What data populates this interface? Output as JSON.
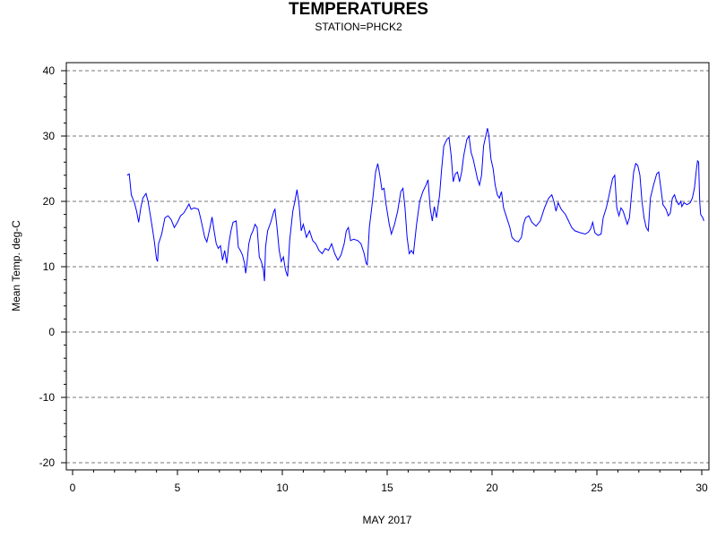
{
  "chart_data": {
    "type": "line",
    "title": "TEMPERATURES",
    "subtitle": "STATION=PHCK2",
    "xlabel": "MAY 2017",
    "ylabel": "Mean Temp. deg-C",
    "xlim": [
      0,
      30
    ],
    "ylim": [
      -21,
      41
    ],
    "x_ticks": [
      0,
      5,
      10,
      15,
      20,
      25,
      30
    ],
    "y_ticks": [
      -20,
      -10,
      0,
      10,
      20,
      30,
      40
    ],
    "grid": "horizontal-dashed",
    "line_color": "#0000ff",
    "series": [
      {
        "points": [
          [
            2.6,
            24.0
          ],
          [
            2.7,
            24.2
          ],
          [
            2.8,
            21.0
          ],
          [
            2.95,
            19.8
          ],
          [
            3.05,
            18.5
          ],
          [
            3.15,
            16.8
          ],
          [
            3.25,
            19.0
          ],
          [
            3.35,
            20.5
          ],
          [
            3.5,
            21.2
          ],
          [
            3.6,
            20.0
          ],
          [
            3.7,
            18.0
          ],
          [
            3.8,
            16.0
          ],
          [
            3.9,
            13.8
          ],
          [
            4.0,
            11.2
          ],
          [
            4.05,
            10.8
          ],
          [
            4.1,
            13.5
          ],
          [
            4.25,
            15.0
          ],
          [
            4.4,
            17.5
          ],
          [
            4.55,
            17.8
          ],
          [
            4.7,
            17.2
          ],
          [
            4.85,
            16.0
          ],
          [
            5.0,
            16.8
          ],
          [
            5.15,
            17.8
          ],
          [
            5.3,
            18.2
          ],
          [
            5.45,
            19.0
          ],
          [
            5.55,
            19.6
          ],
          [
            5.65,
            18.8
          ],
          [
            5.8,
            19.0
          ],
          [
            6.0,
            18.8
          ],
          [
            6.1,
            17.5
          ],
          [
            6.2,
            16.0
          ],
          [
            6.3,
            14.5
          ],
          [
            6.4,
            13.8
          ],
          [
            6.55,
            16.0
          ],
          [
            6.65,
            17.6
          ],
          [
            6.75,
            15.5
          ],
          [
            6.85,
            13.5
          ],
          [
            6.95,
            12.8
          ],
          [
            7.05,
            13.2
          ],
          [
            7.15,
            11.0
          ],
          [
            7.25,
            12.5
          ],
          [
            7.35,
            10.5
          ],
          [
            7.45,
            13.5
          ],
          [
            7.55,
            15.5
          ],
          [
            7.65,
            16.8
          ],
          [
            7.8,
            17.0
          ],
          [
            7.9,
            13.0
          ],
          [
            8.0,
            12.5
          ],
          [
            8.1,
            11.8
          ],
          [
            8.2,
            10.5
          ],
          [
            8.25,
            9.0
          ],
          [
            8.3,
            10.0
          ],
          [
            8.4,
            13.5
          ],
          [
            8.5,
            14.8
          ],
          [
            8.6,
            15.5
          ],
          [
            8.7,
            16.5
          ],
          [
            8.8,
            16.0
          ],
          [
            8.9,
            11.5
          ],
          [
            9.0,
            10.8
          ],
          [
            9.1,
            9.5
          ],
          [
            9.15,
            7.8
          ],
          [
            9.2,
            13.0
          ],
          [
            9.3,
            15.5
          ],
          [
            9.45,
            16.8
          ],
          [
            9.6,
            18.5
          ],
          [
            9.65,
            18.8
          ],
          [
            9.75,
            16.0
          ],
          [
            9.85,
            12.5
          ],
          [
            9.95,
            10.8
          ],
          [
            10.05,
            11.5
          ],
          [
            10.15,
            9.5
          ],
          [
            10.25,
            8.5
          ],
          [
            10.35,
            14.0
          ],
          [
            10.5,
            18.5
          ],
          [
            10.6,
            20.0
          ],
          [
            10.7,
            21.8
          ],
          [
            10.8,
            19.5
          ],
          [
            10.9,
            15.5
          ],
          [
            11.0,
            16.5
          ],
          [
            11.15,
            14.5
          ],
          [
            11.3,
            15.5
          ],
          [
            11.45,
            14.0
          ],
          [
            11.6,
            13.5
          ],
          [
            11.75,
            12.5
          ],
          [
            11.9,
            12.0
          ],
          [
            12.05,
            12.8
          ],
          [
            12.2,
            12.5
          ],
          [
            12.35,
            13.5
          ],
          [
            12.5,
            12.0
          ],
          [
            12.65,
            11.0
          ],
          [
            12.8,
            11.8
          ],
          [
            12.95,
            13.5
          ],
          [
            13.05,
            15.5
          ],
          [
            13.15,
            16.0
          ],
          [
            13.25,
            14.0
          ],
          [
            13.4,
            14.2
          ],
          [
            13.6,
            14.0
          ],
          [
            13.75,
            13.5
          ],
          [
            13.9,
            12.0
          ],
          [
            14.0,
            10.5
          ],
          [
            14.05,
            10.3
          ],
          [
            14.15,
            16.0
          ],
          [
            14.3,
            20.0
          ],
          [
            14.45,
            24.5
          ],
          [
            14.55,
            25.8
          ],
          [
            14.65,
            24.0
          ],
          [
            14.75,
            21.8
          ],
          [
            14.85,
            22.0
          ],
          [
            14.95,
            19.5
          ],
          [
            15.1,
            16.5
          ],
          [
            15.2,
            15.0
          ],
          [
            15.35,
            16.5
          ],
          [
            15.5,
            18.5
          ],
          [
            15.65,
            21.5
          ],
          [
            15.75,
            22.0
          ],
          [
            15.85,
            19.0
          ],
          [
            15.95,
            14.5
          ],
          [
            16.05,
            12.0
          ],
          [
            16.15,
            12.5
          ],
          [
            16.25,
            12.0
          ],
          [
            16.4,
            16.5
          ],
          [
            16.55,
            20.0
          ],
          [
            16.7,
            21.5
          ],
          [
            16.85,
            22.5
          ],
          [
            16.95,
            23.3
          ],
          [
            17.05,
            19.0
          ],
          [
            17.15,
            17.0
          ],
          [
            17.25,
            19.2
          ],
          [
            17.35,
            17.5
          ],
          [
            17.5,
            21.0
          ],
          [
            17.6,
            25.0
          ],
          [
            17.7,
            28.5
          ],
          [
            17.85,
            29.5
          ],
          [
            17.95,
            29.8
          ],
          [
            18.05,
            27.0
          ],
          [
            18.15,
            23.0
          ],
          [
            18.25,
            24.2
          ],
          [
            18.35,
            24.5
          ],
          [
            18.45,
            23.0
          ],
          [
            18.55,
            24.5
          ],
          [
            18.65,
            27.0
          ],
          [
            18.8,
            29.5
          ],
          [
            18.9,
            30.0
          ],
          [
            19.0,
            27.5
          ],
          [
            19.1,
            26.5
          ],
          [
            19.2,
            25.0
          ],
          [
            19.3,
            23.5
          ],
          [
            19.4,
            22.5
          ],
          [
            19.5,
            24.0
          ],
          [
            19.6,
            28.5
          ],
          [
            19.7,
            30.0
          ],
          [
            19.78,
            31.2
          ],
          [
            19.85,
            30.0
          ],
          [
            19.95,
            26.5
          ],
          [
            20.05,
            25.0
          ],
          [
            20.15,
            22.5
          ],
          [
            20.25,
            21.0
          ],
          [
            20.35,
            20.5
          ],
          [
            20.45,
            21.5
          ],
          [
            20.55,
            19.0
          ],
          [
            20.7,
            17.5
          ],
          [
            20.85,
            16.0
          ],
          [
            20.95,
            14.5
          ],
          [
            21.1,
            14.0
          ],
          [
            21.25,
            13.8
          ],
          [
            21.4,
            14.5
          ],
          [
            21.5,
            16.5
          ],
          [
            21.6,
            17.5
          ],
          [
            21.75,
            17.8
          ],
          [
            21.9,
            16.8
          ],
          [
            22.1,
            16.2
          ],
          [
            22.3,
            17.0
          ],
          [
            22.5,
            19.0
          ],
          [
            22.7,
            20.5
          ],
          [
            22.85,
            21.0
          ],
          [
            22.95,
            20.0
          ],
          [
            23.05,
            18.5
          ],
          [
            23.15,
            19.8
          ],
          [
            23.3,
            18.8
          ],
          [
            23.5,
            18.0
          ],
          [
            23.65,
            17.0
          ],
          [
            23.8,
            16.0
          ],
          [
            23.95,
            15.5
          ],
          [
            24.2,
            15.2
          ],
          [
            24.45,
            15.0
          ],
          [
            24.6,
            15.3
          ],
          [
            24.7,
            15.8
          ],
          [
            24.8,
            16.8
          ],
          [
            24.9,
            15.2
          ],
          [
            25.05,
            14.8
          ],
          [
            25.2,
            15.0
          ],
          [
            25.3,
            17.5
          ],
          [
            25.45,
            19.0
          ],
          [
            25.55,
            20.5
          ],
          [
            25.65,
            22.0
          ],
          [
            25.75,
            23.5
          ],
          [
            25.85,
            24.0
          ],
          [
            25.95,
            19.0
          ],
          [
            26.05,
            17.8
          ],
          [
            26.15,
            19.0
          ],
          [
            26.25,
            18.5
          ],
          [
            26.35,
            17.5
          ],
          [
            26.45,
            16.5
          ],
          [
            26.55,
            17.5
          ],
          [
            26.65,
            21.0
          ],
          [
            26.75,
            24.5
          ],
          [
            26.85,
            25.8
          ],
          [
            26.95,
            25.5
          ],
          [
            27.05,
            24.0
          ],
          [
            27.15,
            20.0
          ],
          [
            27.25,
            17.5
          ],
          [
            27.35,
            16.0
          ],
          [
            27.45,
            15.5
          ],
          [
            27.55,
            20.5
          ],
          [
            27.7,
            22.5
          ],
          [
            27.85,
            24.2
          ],
          [
            27.95,
            24.5
          ],
          [
            28.05,
            22.0
          ],
          [
            28.15,
            19.5
          ],
          [
            28.3,
            18.8
          ],
          [
            28.4,
            17.8
          ],
          [
            28.5,
            18.2
          ],
          [
            28.6,
            20.5
          ],
          [
            28.7,
            21.0
          ],
          [
            28.8,
            20.0
          ],
          [
            28.9,
            19.5
          ],
          [
            29.0,
            20.0
          ],
          [
            29.05,
            19.2
          ],
          [
            29.15,
            19.8
          ],
          [
            29.3,
            19.5
          ],
          [
            29.45,
            19.8
          ],
          [
            29.55,
            20.5
          ],
          [
            29.65,
            22.0
          ],
          [
            29.75,
            25.0
          ],
          [
            29.8,
            26.2
          ],
          [
            29.85,
            26.0
          ],
          [
            29.9,
            20.0
          ],
          [
            29.95,
            18.0
          ],
          [
            30.05,
            17.5
          ],
          [
            30.1,
            17.0
          ]
        ]
      }
    ]
  }
}
